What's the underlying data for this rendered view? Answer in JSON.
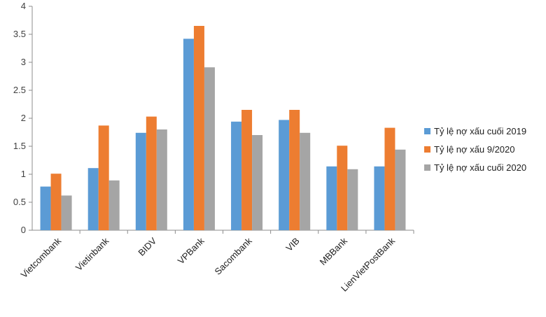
{
  "chart_data": {
    "type": "bar",
    "title": "",
    "xlabel": "",
    "ylabel": "",
    "ylim": [
      0,
      4
    ],
    "yticks": [
      0,
      0.5,
      1,
      1.5,
      2,
      2.5,
      3,
      3.5,
      4
    ],
    "grid": false,
    "legend": "right",
    "categories": [
      "Vietcombank",
      "Vietinbank",
      "BIDV",
      "VPBank",
      "Sacombank",
      "VIB",
      "MBBank",
      "LienVietPostBank"
    ],
    "series": [
      {
        "name": "Tỷ lệ nợ xấu cuối 2019",
        "color": "#5B9BD5",
        "values": [
          0.78,
          1.11,
          1.74,
          3.42,
          1.94,
          1.97,
          1.14,
          1.14
        ]
      },
      {
        "name": "Tỷ lệ nợ xấu 9/2020",
        "color": "#ED7D31",
        "values": [
          1.01,
          1.87,
          2.03,
          3.65,
          2.15,
          2.15,
          1.51,
          1.83
        ]
      },
      {
        "name": "Tỷ lệ nợ xấu cuối 2020",
        "color": "#A5A5A5",
        "values": [
          0.62,
          0.89,
          1.8,
          2.91,
          1.7,
          1.74,
          1.09,
          1.44
        ]
      }
    ]
  }
}
